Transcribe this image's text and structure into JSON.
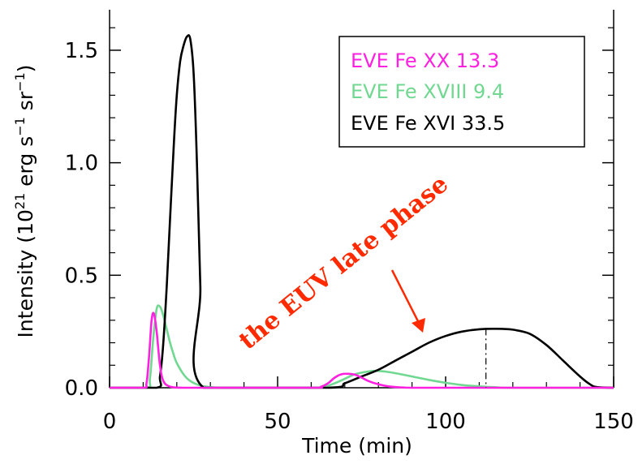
{
  "chart_data": {
    "type": "line",
    "title": "",
    "xlabel": "Time (min)",
    "ylabel_parts": {
      "pre": "Intensity (10",
      "sup1": "21",
      "mid": " erg s",
      "sup2": "−1",
      "mid2": " sr",
      "sup3": "−1",
      "post": ")"
    },
    "xlim": [
      0,
      150
    ],
    "ylim": [
      0,
      1.68
    ],
    "xticks": [
      0,
      50,
      100,
      150
    ],
    "xtick_labels": [
      "0",
      "50",
      "100",
      "150"
    ],
    "yticks": [
      0.0,
      0.5,
      1.0,
      1.5
    ],
    "ytick_labels": [
      "0.0",
      "0.5",
      "1.0",
      "1.5"
    ],
    "legend_position": "top-right",
    "series": [
      {
        "name": "EVE Fe XX 13.3",
        "color": "#ff20e0",
        "x": [
          0,
          10,
          11,
          11.8,
          12.5,
          13.2,
          14,
          15,
          16,
          18,
          22,
          30,
          60,
          63,
          65,
          67,
          69,
          71,
          73,
          75,
          77,
          80,
          83,
          86,
          90,
          100,
          150
        ],
        "y": [
          0,
          0,
          0.02,
          0.15,
          0.3,
          0.33,
          0.25,
          0.1,
          0.03,
          0.005,
          0,
          0,
          0,
          0.005,
          0.02,
          0.045,
          0.06,
          0.062,
          0.058,
          0.045,
          0.03,
          0.015,
          0.006,
          0.002,
          0,
          0,
          0
        ]
      },
      {
        "name": "EVE Fe XVIII 9.4",
        "color": "#70d890",
        "x": [
          0,
          11,
          12,
          13,
          14,
          15,
          16,
          17,
          18,
          19,
          20,
          22,
          24,
          27,
          30,
          35,
          60,
          64,
          67,
          70,
          73,
          76,
          79,
          82,
          85,
          90,
          95,
          100,
          105,
          110,
          115,
          120,
          150
        ],
        "y": [
          0,
          0,
          0.04,
          0.22,
          0.35,
          0.36,
          0.32,
          0.26,
          0.2,
          0.15,
          0.11,
          0.06,
          0.03,
          0.01,
          0.003,
          0,
          0,
          0.005,
          0.02,
          0.04,
          0.06,
          0.07,
          0.075,
          0.072,
          0.065,
          0.05,
          0.035,
          0.022,
          0.012,
          0.006,
          0.002,
          0,
          0
        ]
      },
      {
        "name": "EVE Fe XVI 33.5",
        "color": "#000000",
        "x": [
          0,
          14,
          15,
          16,
          17,
          18,
          19,
          20,
          21,
          22,
          23,
          24,
          25,
          26,
          27,
          28,
          65,
          70,
          75,
          80,
          85,
          90,
          95,
          100,
          105,
          110,
          115,
          120,
          125,
          130,
          135,
          140,
          143,
          145,
          150
        ],
        "y": [
          0,
          0,
          0.05,
          0.2,
          0.45,
          0.75,
          1.05,
          1.3,
          1.45,
          1.52,
          1.56,
          1.55,
          1.4,
          1.0,
          0.45,
          0,
          0,
          0.02,
          0.05,
          0.08,
          0.12,
          0.16,
          0.2,
          0.23,
          0.25,
          0.26,
          0.262,
          0.258,
          0.24,
          0.19,
          0.12,
          0.05,
          0.015,
          0.003,
          0
        ]
      }
    ],
    "marker_line": {
      "x": 112,
      "y": 0.262
    },
    "annotation": {
      "text": "the EUV late phase",
      "arrow_to": {
        "x": 95,
        "y": 0.22
      }
    }
  }
}
